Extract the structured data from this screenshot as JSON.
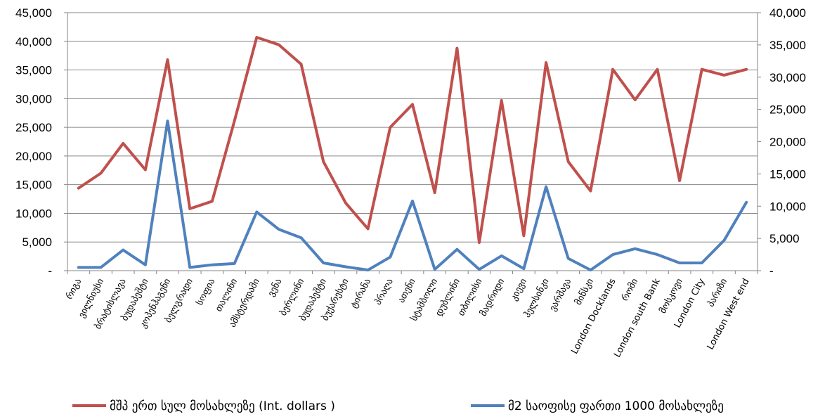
{
  "chart_data": {
    "type": "line",
    "categories": [
      "რიგა",
      "ვილნიუსი",
      "ბრატისლავა",
      "ბუდაპეშტი",
      "კოპენჰაგენი",
      "ბელგრადი",
      "სოფია",
      "თალინი",
      "ამსტერდამი",
      "ვენა",
      "ბერლინი",
      "ბუდაპეშტი",
      "ბუქარესტი",
      "ტირანა",
      "პრაღა",
      "ათენი",
      "სტამბოლი",
      "დუბლინი",
      "თბილისი",
      "მადრიდი",
      "კიევი",
      "ჰელსინკი",
      "ვარშავა",
      "მინსკი",
      "London Docklands",
      "რომი",
      "London south Bank",
      "მოსკოვი",
      "London City",
      "პარიზი",
      "London West end"
    ],
    "series": [
      {
        "name": "მშპ ერთ სულ მოსახლეზე (Int. dollars    )",
        "axis": "left",
        "color": "#C0504D",
        "values": [
          14400,
          17000,
          22200,
          17600,
          36800,
          10800,
          12100,
          26100,
          40700,
          39400,
          36000,
          19000,
          11800,
          7300,
          25000,
          29000,
          13600,
          38800,
          4900,
          29700,
          6100,
          36300,
          19000,
          13900,
          35100,
          29800,
          35100,
          15700,
          35100,
          34100,
          35100
        ]
      },
      {
        "name": "მ2 საოფისე ფართი 1000 მოსახლეზე",
        "axis": "right",
        "color": "#4F81BD",
        "values": [
          500,
          500,
          3200,
          900,
          23200,
          500,
          900,
          1100,
          9100,
          6400,
          5100,
          1200,
          600,
          100,
          2100,
          10800,
          200,
          3300,
          200,
          2300,
          300,
          13000,
          1900,
          100,
          2500,
          3400,
          2500,
          1200,
          1200,
          4700,
          10600
        ]
      }
    ],
    "y_left": {
      "min": 0,
      "max": 45000,
      "step": 5000,
      "ticks": [
        "-",
        "5,000",
        "10,000",
        "15,000",
        "20,000",
        "25,000",
        "30,000",
        "35,000",
        "40,000",
        "45,000"
      ]
    },
    "y_right": {
      "min": 0,
      "max": 40000,
      "step": 5000,
      "ticks": [
        "-",
        "5,000",
        "10,000",
        "15,000",
        "20,000",
        "25,000",
        "30,000",
        "35,000",
        "40,000"
      ]
    },
    "grid": true,
    "legend_position": "bottom",
    "title": "",
    "xlabel": "",
    "ylabel": ""
  }
}
